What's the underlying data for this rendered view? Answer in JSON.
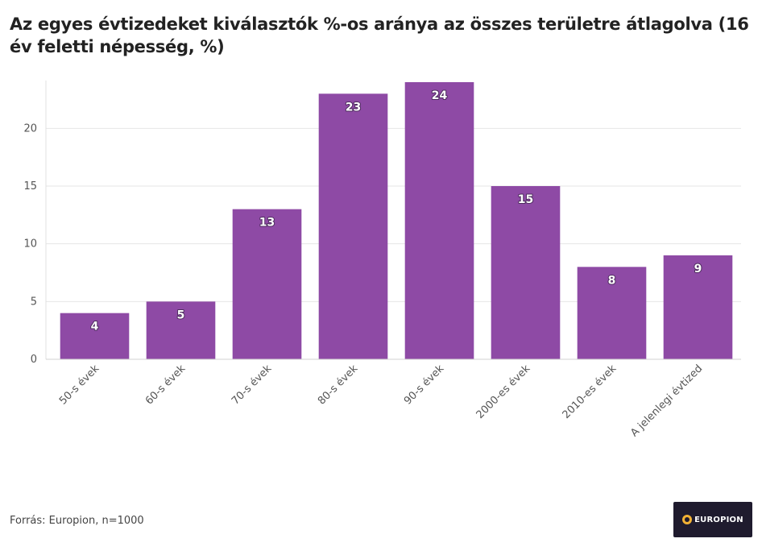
{
  "chart_data": {
    "type": "bar",
    "title": "Az egyes évtizedeket kiválasztók %-os aránya az összes területre átlagolva (16 év feletti népesség, %)",
    "categories": [
      "50-s évek",
      "60-s évek",
      "70-s évek",
      "80-s évek",
      "90-s évek",
      "2000-es évek",
      "2010-es évek",
      "A jelenlegi évtized"
    ],
    "values": [
      4,
      5,
      13,
      23,
      24,
      15,
      8,
      9
    ],
    "xlabel": "",
    "ylabel": "",
    "ylim": [
      0,
      24
    ],
    "yticks": [
      0,
      5,
      10,
      15,
      20
    ],
    "grid": true,
    "bar_color": "#8e4aa5"
  },
  "footer": {
    "source": "Forrás: Europion, n=1000",
    "logo_text": "EUROPION"
  }
}
